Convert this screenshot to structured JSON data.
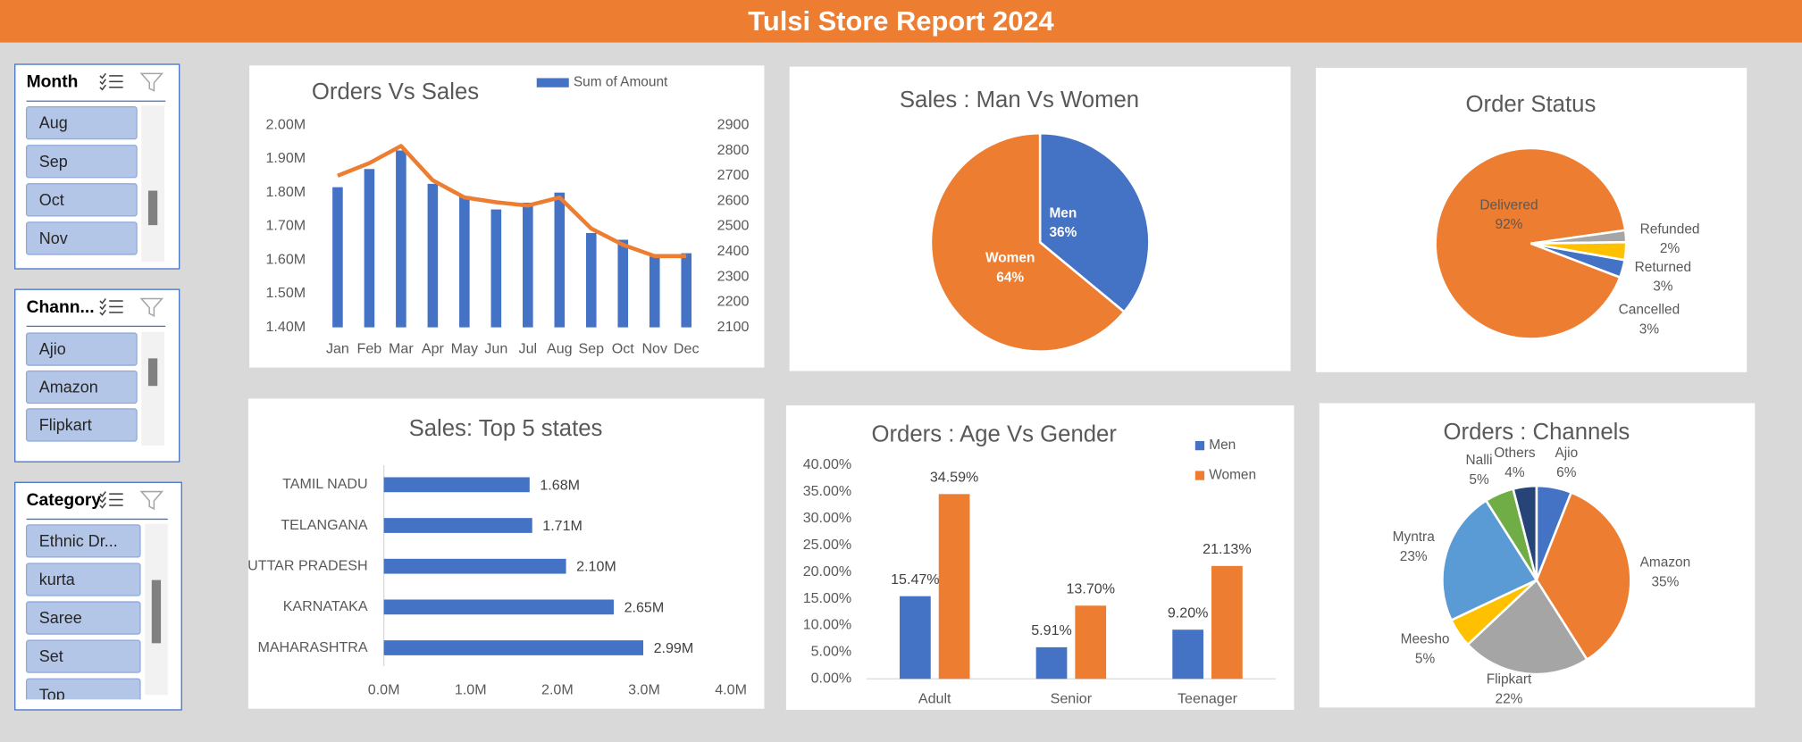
{
  "header": {
    "title": "Tulsi Store Report 2024"
  },
  "slicers": [
    {
      "title": "Month",
      "items": [
        "Aug",
        "Sep",
        "Oct",
        "Nov"
      ]
    },
    {
      "title": "Chann...",
      "items": [
        "Ajio",
        "Amazon",
        "Flipkart"
      ]
    },
    {
      "title": "Category",
      "items": [
        "Ethnic Dr...",
        "kurta",
        "Saree",
        "Set",
        "Top"
      ]
    }
  ],
  "chart_data": [
    {
      "type": "bar",
      "title": "Orders Vs Sales",
      "categories": [
        "Jan",
        "Feb",
        "Mar",
        "Apr",
        "May",
        "Jun",
        "Jul",
        "Aug",
        "Sep",
        "Oct",
        "Nov",
        "Dec"
      ],
      "series": [
        {
          "name": "Sum of Amount",
          "color": "#4472c4",
          "values": [
            1816000,
            1870000,
            1925000,
            1826000,
            1790000,
            1750000,
            1770000,
            1800000,
            1680000,
            1660000,
            1610000,
            1620000
          ]
        },
        {
          "type": "line",
          "axis": "y2",
          "color": "#ed7d31",
          "values": [
            2700,
            2750,
            2818,
            2682,
            2614,
            2595,
            2582,
            2614,
            2491,
            2427,
            2382,
            2382
          ]
        }
      ],
      "ylim": [
        1400000,
        2000000
      ],
      "yticks": [
        {
          "value": 1400000,
          "label": "1.40M"
        },
        {
          "value": 1500000,
          "label": "1.50M"
        },
        {
          "value": 1600000,
          "label": "1.60M"
        },
        {
          "value": 1700000,
          "label": "1.70M"
        },
        {
          "value": 1800000,
          "label": "1.80M"
        },
        {
          "value": 1900000,
          "label": "1.90M"
        },
        {
          "value": 2000000,
          "label": "2.00M"
        }
      ],
      "y2lim": [
        2100,
        2900
      ],
      "y2ticks": [
        2100,
        2200,
        2300,
        2400,
        2500,
        2600,
        2700,
        2800,
        2900
      ],
      "legend": "top"
    },
    {
      "type": "pie",
      "title": "Sales : Man Vs Women",
      "categories": [
        "Men",
        "Women"
      ],
      "values": [
        36,
        64
      ],
      "value_labels": [
        "36%",
        "64%"
      ],
      "colors": [
        "#4472c4",
        "#ed7d31"
      ]
    },
    {
      "type": "pie",
      "title": "Order Status",
      "categories": [
        "Cancelled",
        "Delivered",
        "Refunded",
        "Returned"
      ],
      "values": [
        3,
        92,
        2,
        3
      ],
      "value_labels": [
        "3%",
        "92%",
        "2%",
        "3%"
      ],
      "colors": [
        "#4472c4",
        "#ed7d31",
        "#a5a5a5",
        "#ffc000"
      ]
    },
    {
      "type": "bar",
      "orientation": "horizontal",
      "title": "Sales: Top 5 states",
      "categories": [
        "TAMIL NADU",
        "TELANGANA",
        "UTTAR PRADESH",
        "KARNATAKA",
        "MAHARASHTRA"
      ],
      "values": [
        1680000,
        1710000,
        2100000,
        2650000,
        2990000
      ],
      "value_labels": [
        "1.68M",
        "1.71M",
        "2.10M",
        "2.65M",
        "2.99M"
      ],
      "color": "#4472c4",
      "xlim": [
        0,
        4000000
      ],
      "xticks": [
        {
          "value": 0,
          "label": "0.0M"
        },
        {
          "value": 1000000,
          "label": "1.0M"
        },
        {
          "value": 2000000,
          "label": "2.0M"
        },
        {
          "value": 3000000,
          "label": "3.0M"
        },
        {
          "value": 4000000,
          "label": "4.0M"
        }
      ]
    },
    {
      "type": "bar",
      "title": "Orders : Age Vs Gender",
      "categories": [
        "Adult",
        "Senior",
        "Teenager"
      ],
      "series": [
        {
          "name": "Men",
          "color": "#4472c4",
          "values": [
            15.47,
            5.91,
            9.2
          ],
          "value_labels": [
            "15.47%",
            "5.91%",
            "9.20%"
          ]
        },
        {
          "name": "Women",
          "color": "#ed7d31",
          "values": [
            34.59,
            13.7,
            21.13
          ],
          "value_labels": [
            "34.59%",
            "13.70%",
            "21.13%"
          ]
        }
      ],
      "ylim": [
        0,
        40
      ],
      "yticks": [
        {
          "value": 0,
          "label": "0.00%"
        },
        {
          "value": 5,
          "label": "5.00%"
        },
        {
          "value": 10,
          "label": "10.00%"
        },
        {
          "value": 15,
          "label": "15.00%"
        },
        {
          "value": 20,
          "label": "20.00%"
        },
        {
          "value": 25,
          "label": "25.00%"
        },
        {
          "value": 30,
          "label": "30.00%"
        },
        {
          "value": 35,
          "label": "35.00%"
        },
        {
          "value": 40,
          "label": "40.00%"
        }
      ],
      "legend": "right"
    },
    {
      "type": "pie",
      "title": "Orders : Channels",
      "categories": [
        "Ajio",
        "Amazon",
        "Flipkart",
        "Meesho",
        "Myntra",
        "Nalli",
        "Others"
      ],
      "values": [
        6,
        35,
        22,
        5,
        23,
        5,
        4
      ],
      "value_labels": [
        "6%",
        "35%",
        "22%",
        "5%",
        "23%",
        "5%",
        "4%"
      ],
      "colors": [
        "#4472c4",
        "#ed7d31",
        "#a5a5a5",
        "#ffc000",
        "#5b9bd5",
        "#70ad47",
        "#264478"
      ]
    }
  ]
}
